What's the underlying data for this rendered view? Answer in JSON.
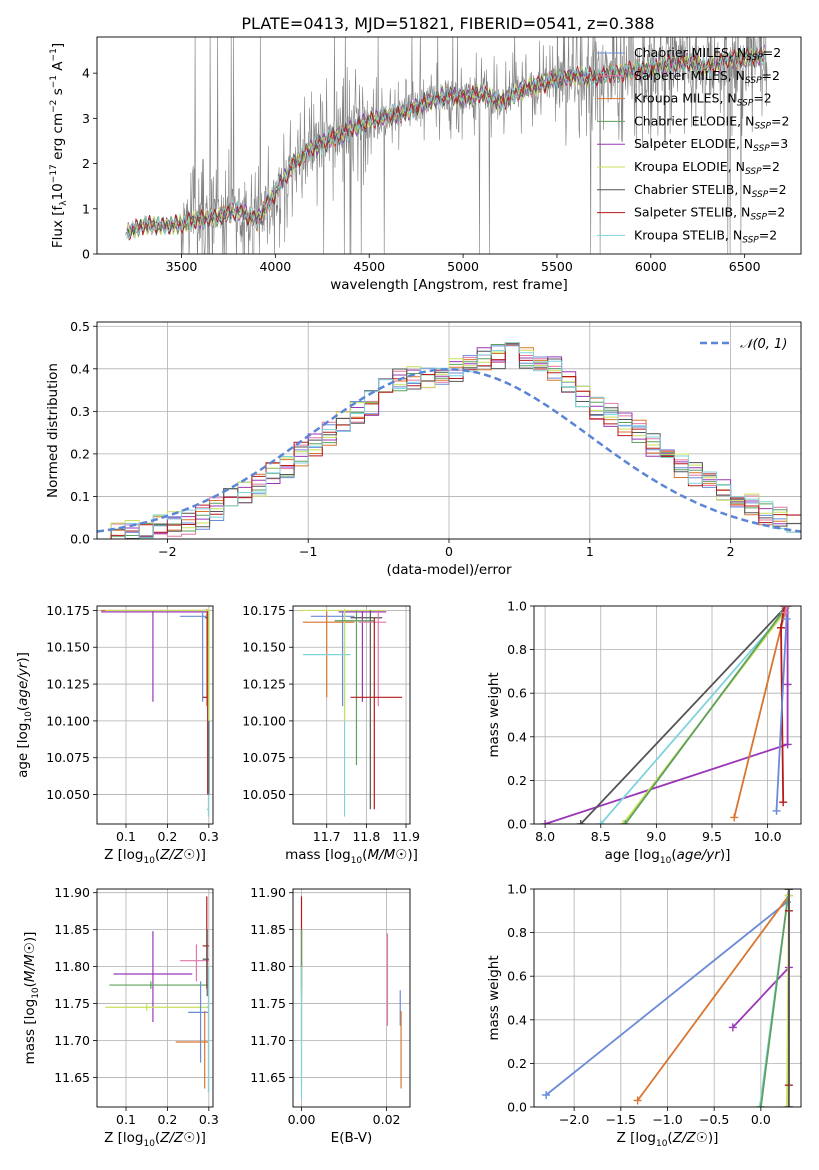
{
  "figure_title": "PLATE=0413, MJD=51821, FIBERID=0541, z=0.388",
  "colors": {
    "chabrier_miles": "#6a8bd8",
    "salpeter_miles": "#e377a8",
    "kroupa_miles": "#d9752f",
    "chabrier_elodie": "#5fa05f",
    "salpeter_elodie": "#9b37b6",
    "kroupa_elodie": "#c8e05a",
    "chabrier_stelib": "#555555",
    "salpeter_stelib": "#b51b1b",
    "kroupa_stelib": "#7fd3dd",
    "data_gray": "#808080",
    "normal_curve": "#5b85d6",
    "grid": "#b0b0b0"
  },
  "chart_data": [
    {
      "id": "spectrum",
      "type": "line",
      "xlabel": "wavelength [Angstrom, rest frame]",
      "ylabel": "Flux [f_λ 10^-17 erg cm^-2 s^-1 A^-1]",
      "xlim": [
        3050,
        6800
      ],
      "ylim": [
        0,
        4.8
      ],
      "xticks": [
        3500,
        4000,
        4500,
        5000,
        5500,
        6000,
        6500
      ],
      "yticks": [
        0,
        1,
        2,
        3,
        4
      ],
      "grid": false,
      "legend_position": "top-right",
      "legend": [
        {
          "base": "Chabrier MILES, N",
          "sub": "SSP",
          "tail": "=2",
          "color_key": "chabrier_miles"
        },
        {
          "base": "Salpeter MILES, N",
          "sub": "SSP",
          "tail": "=2",
          "color_key": "salpeter_miles"
        },
        {
          "base": "Kroupa MILES, N",
          "sub": "SSP",
          "tail": "=2",
          "color_key": "kroupa_miles"
        },
        {
          "base": "Chabrier ELODIE, N",
          "sub": "SSP",
          "tail": "=2",
          "color_key": "chabrier_elodie"
        },
        {
          "base": "Salpeter ELODIE, N",
          "sub": "SSP",
          "tail": "=3",
          "color_key": "salpeter_elodie"
        },
        {
          "base": "Kroupa ELODIE, N",
          "sub": "SSP",
          "tail": "=2",
          "color_key": "kroupa_elodie"
        },
        {
          "base": "Chabrier STELIB, N",
          "sub": "SSP",
          "tail": "=2",
          "color_key": "chabrier_stelib"
        },
        {
          "base": "Salpeter STELIB, N",
          "sub": "SSP",
          "tail": "=2",
          "color_key": "salpeter_stelib"
        },
        {
          "base": "Kroupa STELIB, N",
          "sub": "SSP",
          "tail": "=2",
          "color_key": "kroupa_stelib"
        }
      ],
      "continuum_wavelength": [
        3200,
        3300,
        3400,
        3500,
        3600,
        3700,
        3800,
        3900,
        4000,
        4100,
        4200,
        4300,
        4400,
        4500,
        4600,
        4700,
        4800,
        4900,
        5000,
        5100,
        5200,
        5300,
        5400,
        5500,
        5600,
        5700,
        5800,
        5900,
        6000,
        6100,
        6200,
        6300,
        6400,
        6500,
        6600
      ],
      "continuum_flux": [
        0.45,
        0.65,
        0.62,
        0.66,
        0.78,
        0.82,
        0.95,
        0.75,
        1.35,
        2.0,
        2.35,
        2.55,
        2.75,
        2.95,
        3.05,
        3.15,
        3.35,
        3.5,
        3.45,
        3.55,
        3.35,
        3.6,
        3.75,
        3.85,
        3.95,
        3.9,
        4.0,
        4.05,
        4.1,
        4.2,
        4.25,
        4.1,
        4.3,
        4.35,
        4.4
      ]
    },
    {
      "id": "residuals",
      "type": "line",
      "xlabel": "(data-model)/error",
      "ylabel": "Normed distribution",
      "xlim": [
        -2.5,
        2.5
      ],
      "ylim": [
        0,
        0.51
      ],
      "xticks": [
        -2,
        -1,
        0,
        1,
        2
      ],
      "yticks": [
        0.0,
        0.1,
        0.2,
        0.3,
        0.4,
        0.5
      ],
      "grid": true,
      "legend_position": "top-right",
      "normal_label": "𝒩(0, 1)",
      "bin_width": 0.1,
      "bin_start": -2.5,
      "hist_base": [
        0.01,
        0.015,
        0.02,
        0.025,
        0.03,
        0.035,
        0.04,
        0.05,
        0.07,
        0.09,
        0.11,
        0.13,
        0.15,
        0.17,
        0.2,
        0.22,
        0.25,
        0.27,
        0.3,
        0.32,
        0.35,
        0.37,
        0.38,
        0.38,
        0.38,
        0.4,
        0.41,
        0.42,
        0.43,
        0.44,
        0.43,
        0.42,
        0.4,
        0.37,
        0.34,
        0.31,
        0.29,
        0.27,
        0.25,
        0.22,
        0.2,
        0.17,
        0.15,
        0.13,
        0.11,
        0.09,
        0.08,
        0.06,
        0.05,
        0.035
      ]
    },
    {
      "id": "age_vs_Z",
      "type": "scatter",
      "xlabel": "Z [log10(Z/Z☉)]",
      "ylabel": "age [log10(age/yr)]",
      "xlim": [
        0.03,
        0.31
      ],
      "ylim": [
        10.03,
        10.178
      ],
      "xticks": [
        0.1,
        0.2,
        0.3
      ],
      "yticks": [
        10.05,
        10.075,
        10.1,
        10.125,
        10.15,
        10.175
      ],
      "grid": true,
      "points": [
        {
          "key": "salpeter_elodie",
          "x": 0.165,
          "y": 10.174,
          "xlo": 0.04,
          "xhi": 0.3,
          "ylo": 10.113,
          "yhi": 10.175
        },
        {
          "key": "chabrier_miles",
          "x": 0.285,
          "y": 10.171,
          "xlo": 0.23,
          "xhi": 0.3,
          "ylo": 10.113,
          "yhi": 10.175
        },
        {
          "key": "kroupa_miles",
          "x": 0.295,
          "y": 10.175,
          "xlo": 0.04,
          "xhi": 0.3,
          "ylo": 10.11,
          "yhi": 10.176
        },
        {
          "key": "salpeter_stelib",
          "x": 0.297,
          "y": 10.116,
          "xlo": 0.285,
          "xhi": 0.3,
          "ylo": 10.05,
          "yhi": 10.175
        },
        {
          "key": "kroupa_stelib",
          "x": 0.299,
          "y": 10.04,
          "xlo": 0.295,
          "xhi": 0.3,
          "ylo": 10.035,
          "yhi": 10.175
        },
        {
          "key": "chabrier_stelib",
          "x": 0.3,
          "y": 10.17,
          "xlo": 0.29,
          "xhi": 0.3,
          "ylo": 10.05,
          "yhi": 10.175
        },
        {
          "key": "kroupa_elodie",
          "x": 0.3,
          "y": 10.175,
          "xlo": 0.05,
          "xhi": 0.3,
          "ylo": 10.1,
          "yhi": 10.176
        }
      ]
    },
    {
      "id": "age_vs_mass",
      "type": "scatter",
      "xlabel": "mass [log10(M/M☉)]",
      "ylabel": "",
      "xlim": [
        11.615,
        11.91
      ],
      "ylim": [
        10.03,
        10.178
      ],
      "xticks": [
        11.7,
        11.8,
        11.9
      ],
      "yticks": [
        10.05,
        10.075,
        10.1,
        10.125,
        10.15,
        10.175
      ],
      "grid": true,
      "points": [
        {
          "key": "salpeter_elodie",
          "x": 11.79,
          "y": 10.174,
          "xlo": 11.73,
          "xhi": 11.85,
          "ylo": 10.113,
          "yhi": 10.175
        },
        {
          "key": "chabrier_miles",
          "x": 11.74,
          "y": 10.171,
          "xlo": 11.66,
          "xhi": 11.77,
          "ylo": 10.11,
          "yhi": 10.175
        },
        {
          "key": "kroupa_miles",
          "x": 11.7,
          "y": 10.167,
          "xlo": 11.64,
          "xhi": 11.77,
          "ylo": 10.116,
          "yhi": 10.175
        },
        {
          "key": "kroupa_stelib",
          "x": 11.745,
          "y": 10.145,
          "xlo": 11.64,
          "xhi": 11.76,
          "ylo": 10.035,
          "yhi": 10.175
        },
        {
          "key": "kroupa_elodie",
          "x": 11.745,
          "y": 10.175,
          "xlo": 11.63,
          "xhi": 11.85,
          "ylo": 10.1,
          "yhi": 10.176
        },
        {
          "key": "chabrier_elodie",
          "x": 11.775,
          "y": 10.168,
          "xlo": 11.72,
          "xhi": 11.82,
          "ylo": 10.07,
          "yhi": 10.175
        },
        {
          "key": "chabrier_stelib",
          "x": 11.81,
          "y": 10.17,
          "xlo": 11.76,
          "xhi": 11.84,
          "ylo": 10.04,
          "yhi": 10.175
        },
        {
          "key": "salpeter_miles",
          "x": 11.83,
          "y": 10.167,
          "xlo": 11.78,
          "xhi": 11.85,
          "ylo": 10.11,
          "yhi": 10.175
        },
        {
          "key": "salpeter_stelib",
          "x": 11.82,
          "y": 10.116,
          "xlo": 11.76,
          "xhi": 11.89,
          "ylo": 10.04,
          "yhi": 10.17
        }
      ]
    },
    {
      "id": "cumulative_mass_vs_age",
      "type": "line",
      "xlabel": "age [log10(age/yr)]",
      "ylabel": "mass weight",
      "xlim": [
        7.9,
        10.3
      ],
      "ylim": [
        0,
        1
      ],
      "xticks": [
        8.0,
        8.5,
        9.0,
        9.5,
        10.0
      ],
      "yticks": [
        0.0,
        0.2,
        0.4,
        0.6,
        0.8,
        1.0
      ],
      "grid": true,
      "series": [
        {
          "key": "salpeter_elodie",
          "x": [
            8.0,
            10.18,
            10.18,
            10.18
          ],
          "y": [
            0.0,
            0.365,
            0.64,
            1.0
          ]
        },
        {
          "key": "chabrier_stelib",
          "x": [
            8.32,
            10.17,
            10.17
          ],
          "y": [
            0.0,
            1.0,
            1.0
          ]
        },
        {
          "key": "kroupa_stelib",
          "x": [
            8.5,
            10.15,
            10.15
          ],
          "y": [
            0.0,
            0.97,
            1.0
          ]
        },
        {
          "key": "kroupa_elodie",
          "x": [
            8.7,
            10.15,
            10.16
          ],
          "y": [
            0.0,
            0.97,
            1.0
          ]
        },
        {
          "key": "chabrier_elodie",
          "x": [
            8.72,
            10.16,
            10.16
          ],
          "y": [
            0.0,
            0.99,
            1.0
          ]
        },
        {
          "key": "kroupa_miles",
          "x": [
            9.7,
            10.12,
            10.17
          ],
          "y": [
            0.03,
            0.9,
            1.0
          ]
        },
        {
          "key": "salpeter_stelib",
          "x": [
            10.14,
            10.12,
            10.15
          ],
          "y": [
            0.1,
            0.9,
            1.0
          ]
        },
        {
          "key": "chabrier_miles",
          "x": [
            10.08,
            10.17,
            10.17
          ],
          "y": [
            0.06,
            0.94,
            1.0
          ]
        },
        {
          "key": "salpeter_miles",
          "x": [
            10.16,
            10.17,
            10.17
          ],
          "y": [
            0.97,
            1.0,
            1.0
          ]
        }
      ]
    },
    {
      "id": "mass_vs_Z",
      "type": "scatter",
      "xlabel": "Z [log10(Z/Z☉)]",
      "ylabel": "mass [log10(M/M☉)]",
      "xlim": [
        0.03,
        0.31
      ],
      "ylim": [
        11.61,
        11.905
      ],
      "xticks": [
        0.1,
        0.2,
        0.3
      ],
      "yticks": [
        11.65,
        11.7,
        11.75,
        11.8,
        11.85,
        11.9
      ],
      "grid": true,
      "points": [
        {
          "key": "salpeter_elodie",
          "x": 0.165,
          "y": 11.79,
          "xlo": 0.07,
          "xhi": 0.26,
          "ylo": 11.725,
          "yhi": 11.848
        },
        {
          "key": "chabrier_elodie",
          "x": 0.16,
          "y": 11.775,
          "xlo": 0.06,
          "xhi": 0.3,
          "ylo": 11.77,
          "yhi": 11.78
        },
        {
          "key": "kroupa_elodie",
          "x": 0.15,
          "y": 11.745,
          "xlo": 0.05,
          "xhi": 0.3,
          "ylo": 11.74,
          "yhi": 11.75
        },
        {
          "key": "salpeter_miles",
          "x": 0.27,
          "y": 11.808,
          "xlo": 0.23,
          "xhi": 0.3,
          "ylo": 11.78,
          "yhi": 11.83
        },
        {
          "key": "chabrier_miles",
          "x": 0.28,
          "y": 11.738,
          "xlo": 0.25,
          "xhi": 0.3,
          "ylo": 11.67,
          "yhi": 11.78
        },
        {
          "key": "kroupa_miles",
          "x": 0.29,
          "y": 11.698,
          "xlo": 0.22,
          "xhi": 0.3,
          "ylo": 11.635,
          "yhi": 11.74
        },
        {
          "key": "salpeter_stelib",
          "x": 0.295,
          "y": 11.828,
          "xlo": 0.285,
          "xhi": 0.3,
          "ylo": 11.77,
          "yhi": 11.895
        },
        {
          "key": "chabrier_stelib",
          "x": 0.296,
          "y": 11.81,
          "xlo": 0.285,
          "xhi": 0.3,
          "ylo": 11.76,
          "yhi": 11.85
        },
        {
          "key": "kroupa_stelib",
          "x": 0.299,
          "y": 11.745,
          "xlo": 0.295,
          "xhi": 0.3,
          "ylo": 11.63,
          "yhi": 11.8
        }
      ]
    },
    {
      "id": "mass_vs_ebv",
      "type": "scatter",
      "xlabel": "E(B-V)",
      "ylabel": "",
      "xlim": [
        -0.002,
        0.0255
      ],
      "ylim": [
        11.61,
        11.905
      ],
      "xticks": [
        0.0,
        0.02
      ],
      "yticks": [
        11.65,
        11.7,
        11.75,
        11.8,
        11.85,
        11.9
      ],
      "grid": true,
      "points": [
        {
          "key": "salpeter_stelib",
          "x": 0.0,
          "y": 11.828,
          "xlo": 0.0,
          "xhi": 0.0,
          "ylo": 11.77,
          "yhi": 11.895
        },
        {
          "key": "chabrier_stelib",
          "x": 0.0,
          "y": 11.81,
          "xlo": 0.0,
          "xhi": 0.0,
          "ylo": 11.76,
          "yhi": 11.85
        },
        {
          "key": "chabrier_elodie",
          "x": 0.0,
          "y": 11.775,
          "xlo": 0.0,
          "xhi": 0.0,
          "ylo": 11.7,
          "yhi": 11.85
        },
        {
          "key": "kroupa_elodie",
          "x": 0.0,
          "y": 11.745,
          "xlo": 0.0,
          "xhi": 0.0,
          "ylo": 11.64,
          "yhi": 11.8
        },
        {
          "key": "kroupa_stelib",
          "x": 0.0,
          "y": 11.745,
          "xlo": 0.0,
          "xhi": 0.0,
          "ylo": 11.62,
          "yhi": 11.8
        },
        {
          "key": "salpeter_miles",
          "x": 0.0202,
          "y": 11.808,
          "xlo": 0.0202,
          "xhi": 0.0202,
          "ylo": 11.72,
          "yhi": 11.845
        },
        {
          "key": "chabrier_miles",
          "x": 0.0232,
          "y": 11.738,
          "xlo": 0.0232,
          "xhi": 0.0232,
          "ylo": 11.72,
          "yhi": 11.768
        },
        {
          "key": "kroupa_miles",
          "x": 0.0234,
          "y": 11.698,
          "xlo": 0.0234,
          "xhi": 0.0234,
          "ylo": 11.635,
          "yhi": 11.74
        }
      ]
    },
    {
      "id": "cumulative_mass_vs_Z",
      "type": "line",
      "xlabel": "Z [log10(Z/Z☉)]",
      "ylabel": "mass weight",
      "xlim": [
        -2.43,
        0.43
      ],
      "ylim": [
        0,
        1
      ],
      "xticks": [
        -2.0,
        -1.5,
        -1.0,
        -0.5,
        0.0
      ],
      "yticks": [
        0.0,
        0.2,
        0.4,
        0.6,
        0.8,
        1.0
      ],
      "grid": true,
      "series": [
        {
          "key": "chabrier_miles",
          "x": [
            -2.3,
            0.28,
            0.3
          ],
          "y": [
            0.055,
            0.94,
            1.0
          ]
        },
        {
          "key": "kroupa_miles",
          "x": [
            -1.32,
            0.3,
            0.3
          ],
          "y": [
            0.03,
            0.97,
            1.0
          ]
        },
        {
          "key": "salpeter_elodie",
          "x": [
            -0.3,
            0.3,
            0.3
          ],
          "y": [
            0.365,
            0.64,
            1.0
          ]
        },
        {
          "key": "kroupa_stelib",
          "x": [
            -0.01,
            0.3,
            0.3
          ],
          "y": [
            0.0,
            1.0,
            1.0
          ]
        },
        {
          "key": "chabrier_elodie",
          "x": [
            0.0,
            0.3,
            0.3
          ],
          "y": [
            0.0,
            1.0,
            1.0
          ]
        },
        {
          "key": "kroupa_elodie",
          "x": [
            0.28,
            0.3,
            0.3
          ],
          "y": [
            0.0,
            0.97,
            1.0
          ]
        },
        {
          "key": "salpeter_stelib",
          "x": [
            0.3,
            0.3,
            0.3
          ],
          "y": [
            0.1,
            0.9,
            1.0
          ]
        },
        {
          "key": "chabrier_stelib",
          "x": [
            0.3,
            0.3,
            0.3
          ],
          "y": [
            0.0,
            1.0,
            1.0
          ]
        }
      ]
    }
  ]
}
